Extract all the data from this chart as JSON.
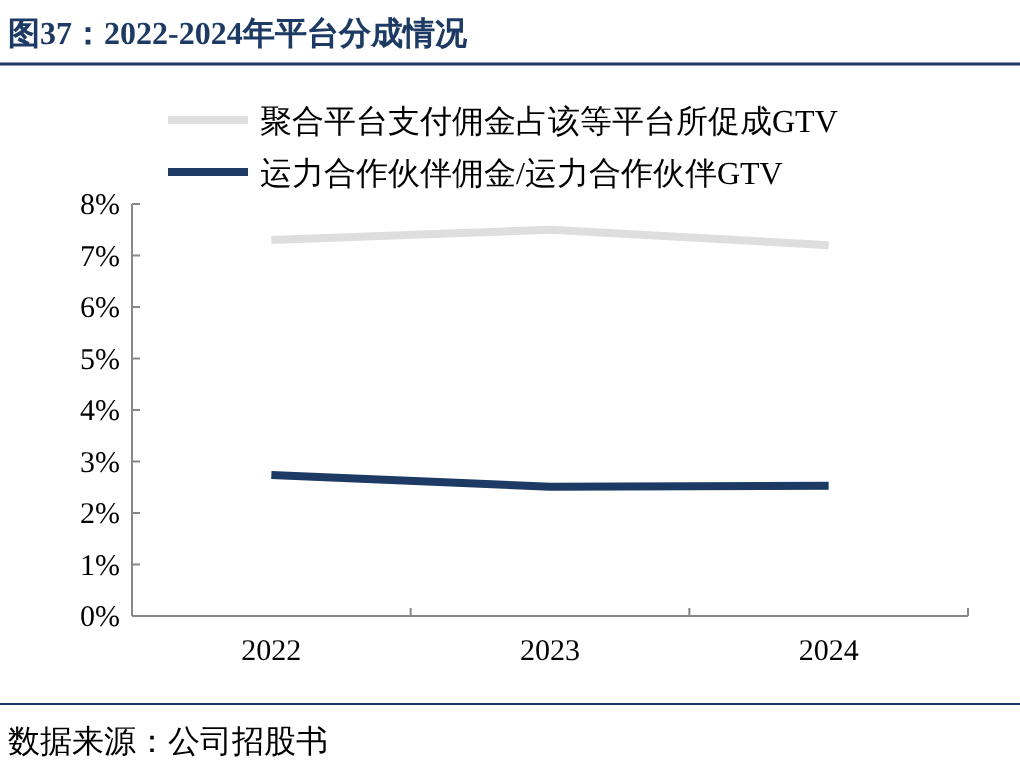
{
  "chart_data": {
    "type": "line",
    "title": "图37：2022-2024年平台分成情况",
    "categories": [
      "2022",
      "2023",
      "2024"
    ],
    "series": [
      {
        "name": "聚合平台支付佣金占该等平台所促成GTV",
        "color": "#dedede",
        "values": [
          7.3,
          7.5,
          7.2
        ]
      },
      {
        "name": "运力合作伙伴佣金/运力合作伙伴GTV",
        "color": "#1c3a63",
        "values": [
          2.74,
          2.51,
          2.53
        ]
      }
    ],
    "ylim": [
      0,
      8
    ],
    "yticks": [
      {
        "value": 0,
        "label": "0%"
      },
      {
        "value": 1,
        "label": "1%"
      },
      {
        "value": 2,
        "label": "2%"
      },
      {
        "value": 3,
        "label": "3%"
      },
      {
        "value": 4,
        "label": "4%"
      },
      {
        "value": 5,
        "label": "5%"
      },
      {
        "value": 6,
        "label": "6%"
      },
      {
        "value": 7,
        "label": "7%"
      },
      {
        "value": 8,
        "label": "8%"
      }
    ],
    "legend": "top",
    "grid": false,
    "marker": "none",
    "line_style": "solid",
    "annotations": [
      "数据来源：公司招股书"
    ]
  }
}
